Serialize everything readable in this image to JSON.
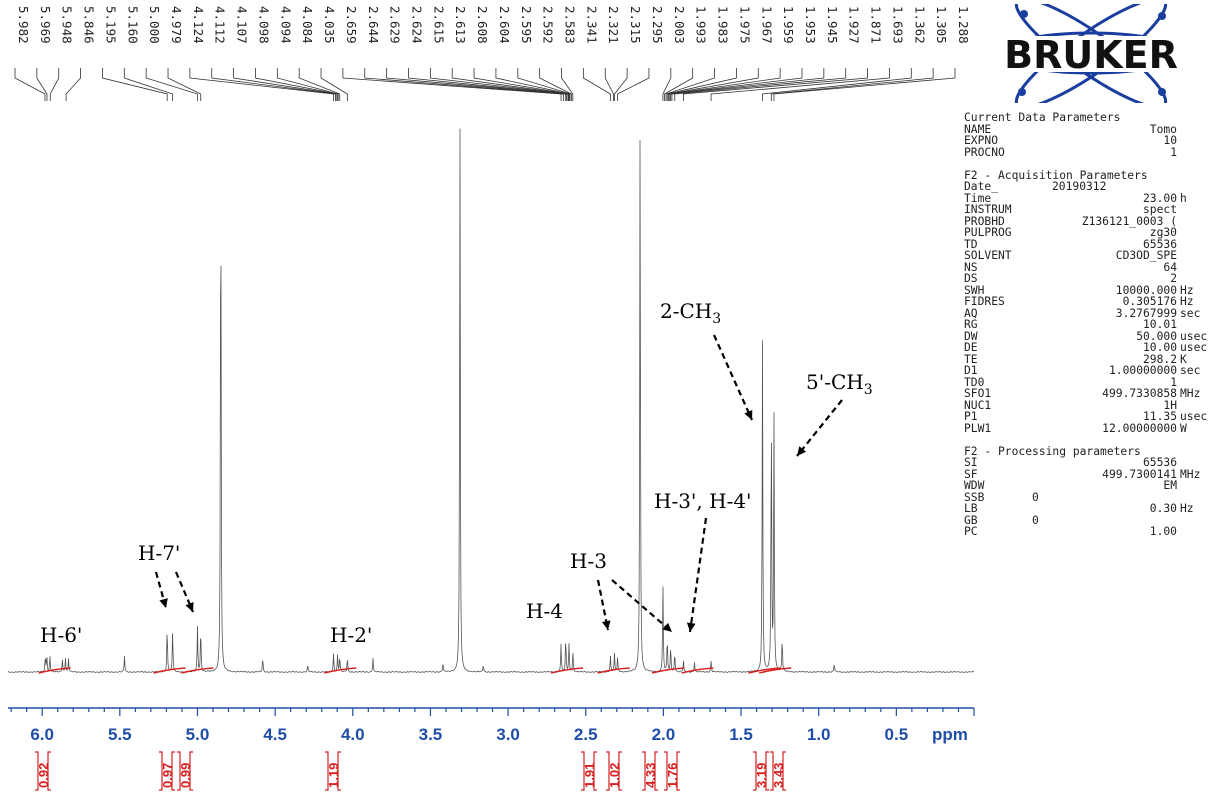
{
  "logo": {
    "text": "BRUKER"
  },
  "peak_labels": [
    "5.982",
    "5.969",
    "5.948",
    "5.846",
    "5.195",
    "5.160",
    "5.000",
    "4.979",
    "4.124",
    "4.112",
    "4.107",
    "4.098",
    "4.094",
    "4.084",
    "4.035",
    "2.659",
    "2.644",
    "2.629",
    "2.624",
    "2.615",
    "2.613",
    "2.608",
    "2.604",
    "2.595",
    "2.592",
    "2.583",
    "2.341",
    "2.321",
    "2.315",
    "2.295",
    "2.003",
    "1.993",
    "1.983",
    "1.975",
    "1.967",
    "1.959",
    "1.953",
    "1.945",
    "1.927",
    "1.871",
    "1.693",
    "1.362",
    "1.305",
    "1.288"
  ],
  "parameters": {
    "current_title": "Current Data Parameters",
    "current": [
      {
        "key": "NAME",
        "value": "Tomo",
        "unit": ""
      },
      {
        "key": "EXPNO",
        "value": "10",
        "unit": ""
      },
      {
        "key": "PROCNO",
        "value": "1",
        "unit": ""
      }
    ],
    "acq_title": "F2 - Acquisition Parameters",
    "acq": [
      {
        "key": "Date_",
        "value": "20190312",
        "unit": "",
        "c": true
      },
      {
        "key": "Time",
        "value": "23.00",
        "unit": "h"
      },
      {
        "key": "INSTRUM",
        "value": "spect",
        "unit": ""
      },
      {
        "key": "PROBHD",
        "value": "Z136121_0003 (",
        "unit": ""
      },
      {
        "key": "PULPROG",
        "value": "zg30",
        "unit": ""
      },
      {
        "key": "TD",
        "value": "65536",
        "unit": ""
      },
      {
        "key": "SOLVENT",
        "value": "CD3OD_SPE",
        "unit": ""
      },
      {
        "key": "NS",
        "value": "64",
        "unit": ""
      },
      {
        "key": "DS",
        "value": "2",
        "unit": ""
      },
      {
        "key": "SWH",
        "value": "10000.000",
        "unit": "Hz"
      },
      {
        "key": "FIDRES",
        "value": "0.305176",
        "unit": "Hz"
      },
      {
        "key": "AQ",
        "value": "3.2767999",
        "unit": "sec"
      },
      {
        "key": "RG",
        "value": "10.01",
        "unit": ""
      },
      {
        "key": "DW",
        "value": "50.000",
        "unit": "usec"
      },
      {
        "key": "DE",
        "value": "10.00",
        "unit": "usec"
      },
      {
        "key": "TE",
        "value": "298.2",
        "unit": "K"
      },
      {
        "key": "D1",
        "value": "1.00000000",
        "unit": "sec"
      },
      {
        "key": "TD0",
        "value": "1",
        "unit": ""
      },
      {
        "key": "SFO1",
        "value": "499.7330858",
        "unit": "MHz"
      },
      {
        "key": "NUC1",
        "value": "1H",
        "unit": ""
      },
      {
        "key": "P1",
        "value": "11.35",
        "unit": "usec"
      },
      {
        "key": "PLW1",
        "value": "12.00000000",
        "unit": "W"
      }
    ],
    "proc_title": "F2 - Processing parameters",
    "proc": [
      {
        "key": "SI",
        "value": "65536",
        "unit": ""
      },
      {
        "key": "SF",
        "value": "499.7300141",
        "unit": "MHz"
      },
      {
        "key": "WDW",
        "value": "EM",
        "unit": ""
      },
      {
        "key": "SSB",
        "value": "0",
        "unit": "",
        "short": true
      },
      {
        "key": "LB",
        "value": "0.30",
        "unit": "Hz"
      },
      {
        "key": "GB",
        "value": "0",
        "unit": "",
        "short": true
      },
      {
        "key": "PC",
        "value": "1.00",
        "unit": ""
      }
    ]
  },
  "chart_data": {
    "type": "line",
    "title": "",
    "xlabel": "ppm",
    "xlim": [
      6.22,
      0.0
    ],
    "x_reversed": true,
    "x_ticks": [
      "6.0",
      "5.5",
      "5.0",
      "4.5",
      "4.0",
      "3.5",
      "3.0",
      "2.5",
      "2.0",
      "1.5",
      "1.0",
      "0.5"
    ],
    "peaks": [
      {
        "ppm": 5.98,
        "height": 0.028
      },
      {
        "ppm": 5.97,
        "height": 0.03
      },
      {
        "ppm": 5.95,
        "height": 0.028
      },
      {
        "ppm": 5.85,
        "height": 0.025
      },
      {
        "ppm": 5.87,
        "height": 0.024
      },
      {
        "ppm": 5.83,
        "height": 0.024
      },
      {
        "ppm": 5.47,
        "height": 0.028
      },
      {
        "ppm": 5.195,
        "height": 0.08
      },
      {
        "ppm": 5.16,
        "height": 0.075
      },
      {
        "ppm": 5.0,
        "height": 0.08
      },
      {
        "ppm": 4.979,
        "height": 0.078
      },
      {
        "ppm": 4.85,
        "height": 0.97
      },
      {
        "ppm": 4.58,
        "height": 0.025
      },
      {
        "ppm": 4.29,
        "height": 0.012
      },
      {
        "ppm": 4.124,
        "height": 0.032
      },
      {
        "ppm": 4.098,
        "height": 0.03
      },
      {
        "ppm": 4.084,
        "height": 0.028
      },
      {
        "ppm": 4.035,
        "height": 0.024
      },
      {
        "ppm": 3.87,
        "height": 0.025
      },
      {
        "ppm": 3.42,
        "height": 0.015
      },
      {
        "ppm": 3.31,
        "height": 0.98
      },
      {
        "ppm": 3.16,
        "height": 0.013
      },
      {
        "ppm": 2.659,
        "height": 0.05
      },
      {
        "ppm": 2.629,
        "height": 0.062
      },
      {
        "ppm": 2.608,
        "height": 0.05
      },
      {
        "ppm": 2.583,
        "height": 0.038
      },
      {
        "ppm": 2.341,
        "height": 0.028
      },
      {
        "ppm": 2.315,
        "height": 0.032
      },
      {
        "ppm": 2.295,
        "height": 0.025
      },
      {
        "ppm": 2.15,
        "height": 0.99
      },
      {
        "ppm": 2.003,
        "height": 0.155
      },
      {
        "ppm": 1.975,
        "height": 0.06
      },
      {
        "ppm": 1.953,
        "height": 0.045
      },
      {
        "ppm": 1.927,
        "height": 0.035
      },
      {
        "ppm": 1.871,
        "height": 0.02
      },
      {
        "ppm": 1.8,
        "height": 0.018
      },
      {
        "ppm": 1.693,
        "height": 0.02
      },
      {
        "ppm": 1.362,
        "height": 0.585
      },
      {
        "ppm": 1.305,
        "height": 0.47
      },
      {
        "ppm": 1.288,
        "height": 0.45
      },
      {
        "ppm": 1.235,
        "height": 0.06
      },
      {
        "ppm": 0.9,
        "height": 0.015
      }
    ],
    "annotations": [
      {
        "text": "H-6'",
        "ppm": 5.9
      },
      {
        "text": "H-7'",
        "ppm": 5.1
      },
      {
        "text": "H-2'",
        "ppm": 4.08
      },
      {
        "text": "H-4",
        "ppm": 2.63
      },
      {
        "text": "H-3",
        "ppm": 2.3
      },
      {
        "text": "H-3', H-4'",
        "ppm": 1.85
      },
      {
        "text": "2-CH",
        "sub": "3",
        "ppm": 1.56
      },
      {
        "text": "5'-CH",
        "sub": "3",
        "ppm": 1.05
      }
    ],
    "integrals": [
      {
        "value": "0.92",
        "ppm": 5.92
      },
      {
        "value": "0.97",
        "ppm": 5.18
      },
      {
        "value": "0.99",
        "ppm": 5.0
      },
      {
        "value": "1.19",
        "ppm": 4.08
      },
      {
        "value": "1.91",
        "ppm": 2.62
      },
      {
        "value": "1.02",
        "ppm": 2.32
      },
      {
        "value": "4.33",
        "ppm": 1.97
      },
      {
        "value": "1.76",
        "ppm": 1.78
      },
      {
        "value": "3.19",
        "ppm": 1.35
      },
      {
        "value": "3.43",
        "ppm": 1.28
      }
    ]
  }
}
